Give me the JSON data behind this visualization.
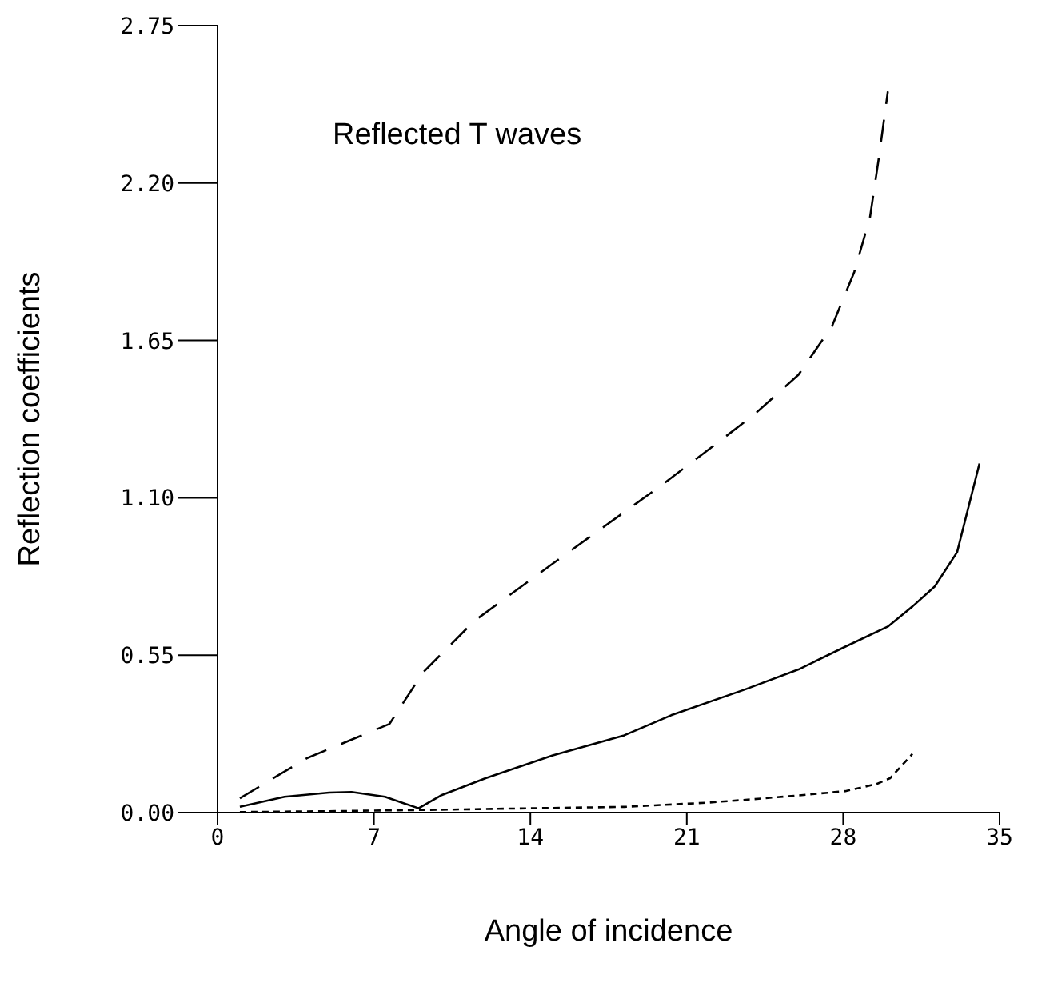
{
  "chart_data": {
    "type": "line",
    "xlabel": "Angle of incidence",
    "ylabel": "Reflection coefficients",
    "annotations": [
      "Reflected T waves"
    ],
    "xlim": [
      0,
      35
    ],
    "xticks": [
      0,
      7,
      14,
      21,
      28,
      35
    ],
    "ylim": [
      0,
      2.75
    ],
    "yticks": [
      {
        "value": 0,
        "label": "0.00"
      },
      {
        "value": 0.55,
        "label": "0.55"
      },
      {
        "value": 1.1,
        "label": "1.10"
      },
      {
        "value": 1.65,
        "label": "1.65"
      },
      {
        "value": 2.2,
        "label": "2.20"
      },
      {
        "value": 2.75,
        "label": "2.75"
      }
    ],
    "grid": false,
    "legend": false,
    "marker": "none",
    "series": [
      {
        "color": "#000000",
        "line_style": "dashed",
        "x": [
          1,
          4,
          7.7,
          9.2,
          11.5,
          15,
          19.8,
          22,
          24,
          26,
          27.5,
          28.5,
          29.2,
          29.6,
          30
        ],
        "values": [
          0.05,
          0.19,
          0.31,
          0.49,
          0.67,
          0.87,
          1.14,
          1.27,
          1.39,
          1.53,
          1.7,
          1.89,
          2.08,
          2.29,
          2.52
        ]
      },
      {
        "color": "#000000",
        "line_style": "solid",
        "x": [
          1,
          3,
          5,
          6,
          7.5,
          9,
          10,
          12,
          15,
          18.2,
          20.3,
          23.6,
          26,
          28.1,
          30,
          31.1,
          32.1,
          33.1,
          34.1
        ],
        "values": [
          0.02,
          0.055,
          0.07,
          0.072,
          0.055,
          0.015,
          0.06,
          0.12,
          0.2,
          0.27,
          0.34,
          0.43,
          0.5,
          0.58,
          0.65,
          0.72,
          0.79,
          0.91,
          1.22
        ]
      },
      {
        "color": "#000000",
        "line_style": "dotted",
        "x": [
          1,
          5,
          10,
          14,
          18.2,
          22,
          24,
          26,
          28.1,
          29.5,
          30.1,
          31.1
        ],
        "values": [
          0.002,
          0.005,
          0.01,
          0.015,
          0.02,
          0.035,
          0.047,
          0.06,
          0.075,
          0.1,
          0.12,
          0.205
        ]
      }
    ]
  }
}
